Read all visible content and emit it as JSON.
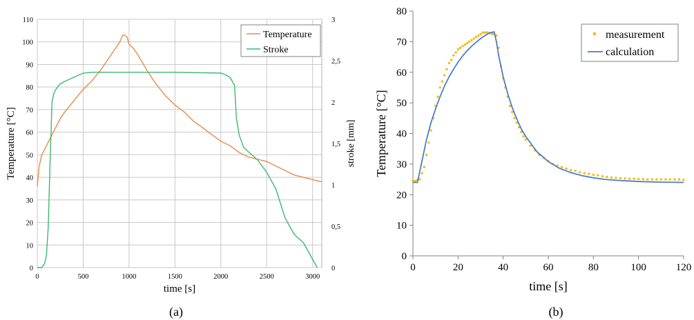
{
  "chart_data": [
    {
      "type": "line",
      "panel_label": "(a)",
      "xlabel": "time [s]",
      "ylabel": "Temperature  [°C]",
      "y2label": "stroke [mm]",
      "xlim": [
        0,
        3100
      ],
      "ylim": [
        0,
        110
      ],
      "y2lim": [
        0,
        3
      ],
      "x_ticks": [
        "0",
        "500",
        "1000",
        "1500",
        "2000",
        "2500",
        "3000"
      ],
      "y_ticks": [
        "0",
        "10",
        "20",
        "30",
        "40",
        "50",
        "60",
        "70",
        "80",
        "90",
        "100",
        "110"
      ],
      "y2_ticks": [
        "0",
        "0,5",
        "1",
        "1,5",
        "2",
        "2,5",
        "3"
      ],
      "grid": true,
      "legend_position": "top-right",
      "series": [
        {
          "name": "Temperature",
          "axis": "left",
          "color": "#e8894a",
          "x": [
            0,
            20,
            50,
            100,
            150,
            200,
            250,
            300,
            400,
            500,
            600,
            700,
            800,
            850,
            900,
            930,
            950,
            980,
            1000,
            1050,
            1100,
            1200,
            1300,
            1400,
            1500,
            1600,
            1700,
            1800,
            1900,
            2000,
            2100,
            2200,
            2300,
            2400,
            2500,
            2600,
            2700,
            2800,
            2900,
            3000,
            3100
          ],
          "y": [
            36,
            45,
            50,
            54,
            58,
            62,
            66,
            69,
            74,
            79,
            83,
            88,
            94,
            97,
            100,
            103,
            103,
            102,
            99,
            97,
            94,
            87,
            81,
            76,
            72,
            69,
            65,
            62,
            59,
            56,
            54,
            51,
            49,
            48,
            47,
            45,
            43,
            41,
            40,
            39,
            38
          ]
        },
        {
          "name": "Stroke",
          "axis": "right",
          "color": "#3cb86e",
          "x": [
            0,
            50,
            80,
            100,
            120,
            140,
            160,
            180,
            200,
            250,
            300,
            400,
            500,
            600,
            800,
            1000,
            1500,
            2000,
            2050,
            2100,
            2150,
            2170,
            2200,
            2250,
            2300,
            2350,
            2400,
            2500,
            2600,
            2700,
            2800,
            2900,
            3000,
            3050
          ],
          "y": [
            0,
            0,
            0.05,
            0.15,
            0.5,
            1.3,
            2.0,
            2.1,
            2.15,
            2.22,
            2.25,
            2.3,
            2.35,
            2.36,
            2.36,
            2.36,
            2.36,
            2.35,
            2.33,
            2.3,
            2.2,
            1.8,
            1.6,
            1.45,
            1.4,
            1.35,
            1.3,
            1.15,
            0.95,
            0.6,
            0.4,
            0.3,
            0.1,
            0.0
          ]
        }
      ]
    },
    {
      "type": "line",
      "panel_label": "(b)",
      "xlabel": "time [s]",
      "ylabel": "Temperature [°C]",
      "xlim": [
        0,
        120
      ],
      "ylim": [
        0,
        80
      ],
      "x_ticks": [
        "0",
        "20",
        "40",
        "60",
        "80",
        "100",
        "120"
      ],
      "y_ticks": [
        "0",
        "10",
        "20",
        "30",
        "40",
        "50",
        "60",
        "70",
        "80"
      ],
      "grid": false,
      "legend_position": "top-right",
      "series": [
        {
          "name": "measurement",
          "style": "scatter",
          "color": "#f5b800",
          "x": [
            0,
            1,
            2,
            3,
            4,
            5,
            6,
            7,
            8,
            9,
            10,
            11,
            12,
            13,
            14,
            15,
            16,
            17,
            18,
            19,
            20,
            21,
            22,
            23,
            24,
            25,
            26,
            27,
            28,
            29,
            30,
            31,
            32,
            33,
            34,
            35,
            36,
            37,
            38,
            39,
            40,
            41,
            42,
            43,
            44,
            45,
            46,
            47,
            48,
            49,
            50,
            52,
            54,
            56,
            58,
            60,
            62,
            64,
            66,
            68,
            70,
            72,
            74,
            76,
            78,
            80,
            82,
            84,
            86,
            88,
            90,
            92,
            94,
            96,
            98,
            100,
            102,
            104,
            106,
            108,
            110,
            112,
            114,
            116,
            118,
            120
          ],
          "y": [
            24.5,
            24.5,
            24.8,
            25,
            27,
            29,
            33,
            37,
            41,
            45,
            49,
            52,
            55,
            57,
            59,
            61,
            63,
            64,
            65.5,
            66.5,
            67.5,
            68,
            68.5,
            69,
            69.5,
            70,
            70.5,
            71,
            71.5,
            72,
            72.5,
            73,
            73,
            73,
            72.8,
            72.5,
            72.5,
            72,
            68,
            62,
            58,
            55,
            52,
            49,
            47,
            45,
            43.5,
            42,
            40.5,
            39,
            38,
            36,
            34.5,
            33,
            32,
            31,
            30,
            29.5,
            29,
            28.5,
            28,
            27.8,
            27.3,
            27,
            26.8,
            26.5,
            26.3,
            26,
            25.8,
            25.6,
            25.5,
            25.4,
            25.3,
            25.2,
            25.2,
            25.1,
            25.1,
            25,
            25,
            25,
            25,
            25,
            25,
            25,
            25,
            24.8
          ]
        },
        {
          "name": "calculation",
          "style": "line",
          "color": "#4a7cc9",
          "x": [
            0,
            2,
            4,
            6,
            8,
            10,
            12,
            14,
            16,
            18,
            20,
            22,
            24,
            26,
            28,
            30,
            32,
            34,
            36,
            37,
            38,
            40,
            42,
            44,
            46,
            48,
            50,
            55,
            60,
            65,
            70,
            75,
            80,
            85,
            90,
            95,
            100,
            110,
            120
          ],
          "y": [
            24,
            24,
            31,
            38,
            43.5,
            48,
            52,
            55.5,
            58.5,
            61,
            63.3,
            65.3,
            67,
            68.5,
            69.8,
            71,
            72,
            72.9,
            73.2,
            70,
            65.5,
            58.5,
            53,
            48.5,
            44.8,
            41.5,
            39,
            34,
            30.8,
            28.6,
            27.2,
            26.2,
            25.5,
            25,
            24.7,
            24.5,
            24.3,
            24.1,
            24
          ]
        }
      ]
    }
  ]
}
